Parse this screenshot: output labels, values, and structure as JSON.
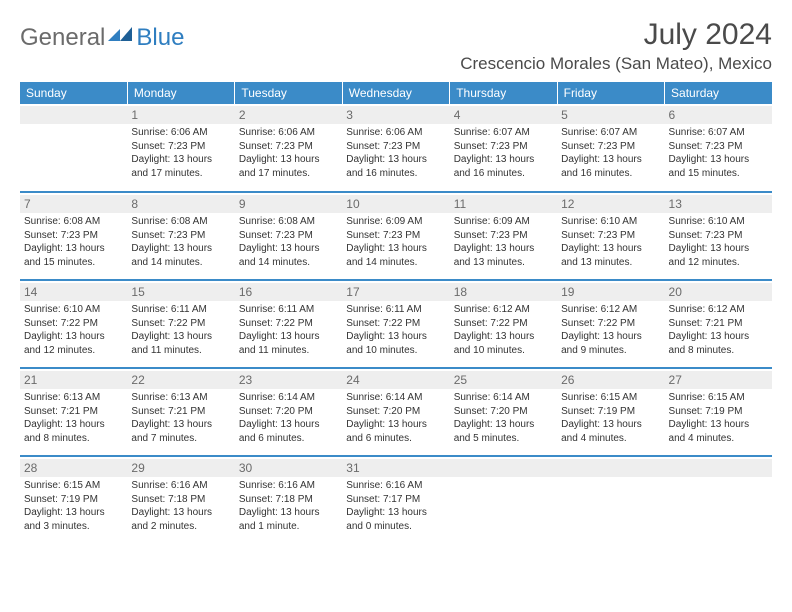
{
  "logo": {
    "part1": "General",
    "part2": "Blue"
  },
  "title": "July 2024",
  "location": "Crescencio Morales (San Mateo), Mexico",
  "header_bg": "#3b8bc8",
  "day_headers": [
    "Sunday",
    "Monday",
    "Tuesday",
    "Wednesday",
    "Thursday",
    "Friday",
    "Saturday"
  ],
  "weeks": [
    [
      {
        "n": "",
        "sunrise": "",
        "sunset": "",
        "daylight": ""
      },
      {
        "n": "1",
        "sunrise": "6:06 AM",
        "sunset": "7:23 PM",
        "daylight": "13 hours and 17 minutes."
      },
      {
        "n": "2",
        "sunrise": "6:06 AM",
        "sunset": "7:23 PM",
        "daylight": "13 hours and 17 minutes."
      },
      {
        "n": "3",
        "sunrise": "6:06 AM",
        "sunset": "7:23 PM",
        "daylight": "13 hours and 16 minutes."
      },
      {
        "n": "4",
        "sunrise": "6:07 AM",
        "sunset": "7:23 PM",
        "daylight": "13 hours and 16 minutes."
      },
      {
        "n": "5",
        "sunrise": "6:07 AM",
        "sunset": "7:23 PM",
        "daylight": "13 hours and 16 minutes."
      },
      {
        "n": "6",
        "sunrise": "6:07 AM",
        "sunset": "7:23 PM",
        "daylight": "13 hours and 15 minutes."
      }
    ],
    [
      {
        "n": "7",
        "sunrise": "6:08 AM",
        "sunset": "7:23 PM",
        "daylight": "13 hours and 15 minutes."
      },
      {
        "n": "8",
        "sunrise": "6:08 AM",
        "sunset": "7:23 PM",
        "daylight": "13 hours and 14 minutes."
      },
      {
        "n": "9",
        "sunrise": "6:08 AM",
        "sunset": "7:23 PM",
        "daylight": "13 hours and 14 minutes."
      },
      {
        "n": "10",
        "sunrise": "6:09 AM",
        "sunset": "7:23 PM",
        "daylight": "13 hours and 14 minutes."
      },
      {
        "n": "11",
        "sunrise": "6:09 AM",
        "sunset": "7:23 PM",
        "daylight": "13 hours and 13 minutes."
      },
      {
        "n": "12",
        "sunrise": "6:10 AM",
        "sunset": "7:23 PM",
        "daylight": "13 hours and 13 minutes."
      },
      {
        "n": "13",
        "sunrise": "6:10 AM",
        "sunset": "7:23 PM",
        "daylight": "13 hours and 12 minutes."
      }
    ],
    [
      {
        "n": "14",
        "sunrise": "6:10 AM",
        "sunset": "7:22 PM",
        "daylight": "13 hours and 12 minutes."
      },
      {
        "n": "15",
        "sunrise": "6:11 AM",
        "sunset": "7:22 PM",
        "daylight": "13 hours and 11 minutes."
      },
      {
        "n": "16",
        "sunrise": "6:11 AM",
        "sunset": "7:22 PM",
        "daylight": "13 hours and 11 minutes."
      },
      {
        "n": "17",
        "sunrise": "6:11 AM",
        "sunset": "7:22 PM",
        "daylight": "13 hours and 10 minutes."
      },
      {
        "n": "18",
        "sunrise": "6:12 AM",
        "sunset": "7:22 PM",
        "daylight": "13 hours and 10 minutes."
      },
      {
        "n": "19",
        "sunrise": "6:12 AM",
        "sunset": "7:22 PM",
        "daylight": "13 hours and 9 minutes."
      },
      {
        "n": "20",
        "sunrise": "6:12 AM",
        "sunset": "7:21 PM",
        "daylight": "13 hours and 8 minutes."
      }
    ],
    [
      {
        "n": "21",
        "sunrise": "6:13 AM",
        "sunset": "7:21 PM",
        "daylight": "13 hours and 8 minutes."
      },
      {
        "n": "22",
        "sunrise": "6:13 AM",
        "sunset": "7:21 PM",
        "daylight": "13 hours and 7 minutes."
      },
      {
        "n": "23",
        "sunrise": "6:14 AM",
        "sunset": "7:20 PM",
        "daylight": "13 hours and 6 minutes."
      },
      {
        "n": "24",
        "sunrise": "6:14 AM",
        "sunset": "7:20 PM",
        "daylight": "13 hours and 6 minutes."
      },
      {
        "n": "25",
        "sunrise": "6:14 AM",
        "sunset": "7:20 PM",
        "daylight": "13 hours and 5 minutes."
      },
      {
        "n": "26",
        "sunrise": "6:15 AM",
        "sunset": "7:19 PM",
        "daylight": "13 hours and 4 minutes."
      },
      {
        "n": "27",
        "sunrise": "6:15 AM",
        "sunset": "7:19 PM",
        "daylight": "13 hours and 4 minutes."
      }
    ],
    [
      {
        "n": "28",
        "sunrise": "6:15 AM",
        "sunset": "7:19 PM",
        "daylight": "13 hours and 3 minutes."
      },
      {
        "n": "29",
        "sunrise": "6:16 AM",
        "sunset": "7:18 PM",
        "daylight": "13 hours and 2 minutes."
      },
      {
        "n": "30",
        "sunrise": "6:16 AM",
        "sunset": "7:18 PM",
        "daylight": "13 hours and 1 minute."
      },
      {
        "n": "31",
        "sunrise": "6:16 AM",
        "sunset": "7:17 PM",
        "daylight": "13 hours and 0 minutes."
      },
      {
        "n": "",
        "sunrise": "",
        "sunset": "",
        "daylight": ""
      },
      {
        "n": "",
        "sunrise": "",
        "sunset": "",
        "daylight": ""
      },
      {
        "n": "",
        "sunrise": "",
        "sunset": "",
        "daylight": ""
      }
    ]
  ]
}
